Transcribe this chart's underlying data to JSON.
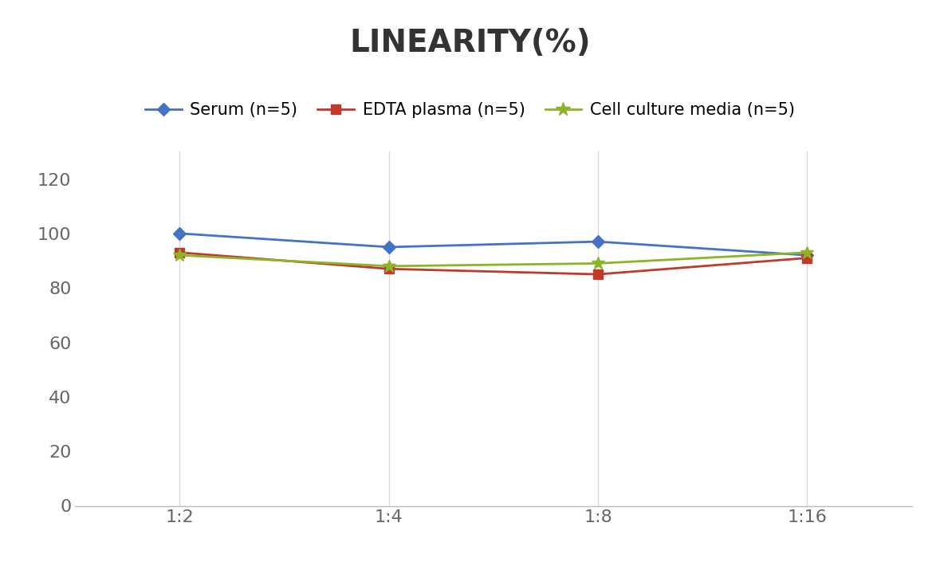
{
  "title": "LINEARITY(%)",
  "x_labels": [
    "1:2",
    "1:4",
    "1:8",
    "1:16"
  ],
  "x_positions": [
    0,
    1,
    2,
    3
  ],
  "series": [
    {
      "label": "Serum (n=5)",
      "values": [
        100,
        95,
        97,
        92
      ],
      "color": "#4472C4",
      "marker": "D",
      "marker_size": 8,
      "linewidth": 2
    },
    {
      "label": "EDTA plasma (n=5)",
      "values": [
        93,
        87,
        85,
        91
      ],
      "color": "#C0392B",
      "marker": "s",
      "marker_size": 8,
      "linewidth": 2
    },
    {
      "label": "Cell culture media (n=5)",
      "values": [
        92,
        88,
        89,
        93
      ],
      "color": "#8DB428",
      "marker": "*",
      "marker_size": 12,
      "linewidth": 2
    }
  ],
  "ylim": [
    0,
    130
  ],
  "yticks": [
    0,
    20,
    40,
    60,
    80,
    100,
    120
  ],
  "background_color": "#FFFFFF",
  "grid_color": "#D8D8D8",
  "title_fontsize": 28,
  "tick_fontsize": 16,
  "legend_fontsize": 15
}
